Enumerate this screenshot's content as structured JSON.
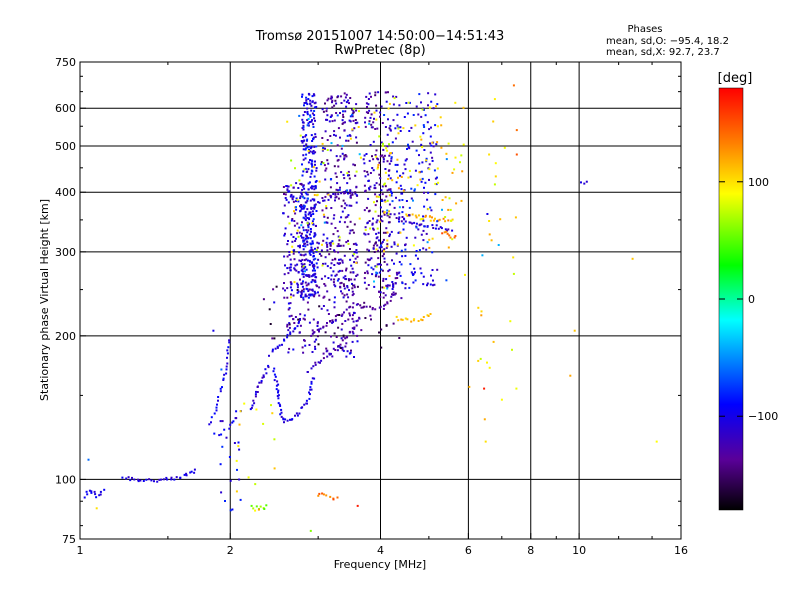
{
  "chart_data": {
    "type": "scatter",
    "title": "Tromsø 20151007 14:50:00−14:51:43",
    "subtitle": "RwPretec (8p)",
    "xlabel": "Frequency [MHz]",
    "ylabel": "Stationary phase Virtual Height [km]",
    "x_scale": "log",
    "y_scale": "log",
    "xlim": [
      1,
      16
    ],
    "ylim": [
      75,
      750
    ],
    "x_ticks": [
      "1",
      "2",
      "4",
      "6",
      "8",
      "10",
      "16"
    ],
    "x_tick_values": [
      1,
      2,
      4,
      6,
      8,
      10,
      16
    ],
    "y_ticks": [
      "75",
      "100",
      "200",
      "300",
      "400",
      "500",
      "600",
      "750"
    ],
    "y_tick_values": [
      75,
      100,
      200,
      300,
      400,
      500,
      600,
      750
    ],
    "x_grid": [
      2,
      4,
      6,
      8,
      10
    ],
    "y_grid": [
      100,
      200,
      300,
      400,
      500,
      600
    ],
    "grid": true,
    "stats": {
      "title": "Phases",
      "line_o": "mean, sd,O: −95.4, 18.2",
      "line_x": "mean, sd,X:  92.7, 23.7"
    },
    "colorbar": {
      "label": "[deg]",
      "range": [
        -180,
        180
      ],
      "ticks": [
        "100",
        "0",
        "−100"
      ],
      "tick_values": [
        100,
        0,
        -100
      ],
      "colors": [
        "#000000",
        "#5a0099",
        "#0000ff",
        "#00ffff",
        "#00ff00",
        "#ffff00",
        "#ff7f00",
        "#ff0000"
      ]
    },
    "traces": [
      {
        "phase": -100,
        "step": 0.012,
        "pts": [
          [
            1.02,
            92
          ],
          [
            1.05,
            95
          ],
          [
            1.08,
            92
          ],
          [
            1.12,
            96
          ]
        ]
      },
      {
        "phase": -105,
        "step": 0.012,
        "pts": [
          [
            1.22,
            101
          ],
          [
            1.3,
            100
          ],
          [
            1.42,
            99.5
          ],
          [
            1.55,
            100
          ],
          [
            1.63,
            102
          ],
          [
            1.72,
            105
          ]
        ]
      },
      {
        "phase": -100,
        "step": 0.02,
        "pts": [
          [
            1.82,
            130
          ],
          [
            1.87,
            140
          ],
          [
            1.9,
            150
          ],
          [
            1.94,
            160
          ],
          [
            1.96,
            170
          ],
          [
            1.97,
            180
          ],
          [
            1.98,
            190
          ],
          [
            1.98,
            200
          ]
        ]
      },
      {
        "phase": -100,
        "step": 0.02,
        "pts": [
          [
            1.86,
            125
          ],
          [
            1.92,
            125
          ],
          [
            1.98,
            127
          ],
          [
            2.06,
            138
          ],
          [
            2.12,
            140
          ]
        ]
      },
      {
        "phase": -100,
        "step": 0.012,
        "pts": [
          [
            2.4,
            183
          ],
          [
            2.5,
            190
          ],
          [
            2.6,
            198
          ],
          [
            2.7,
            208
          ],
          [
            2.78,
            220
          ]
        ]
      },
      {
        "phase": -125,
        "step": 0.012,
        "pts": [
          [
            2.85,
            168
          ],
          [
            3.0,
            176
          ],
          [
            3.2,
            185
          ],
          [
            3.4,
            196
          ],
          [
            3.55,
            210
          ],
          [
            3.65,
            222
          ]
        ]
      },
      {
        "phase": -130,
        "step": 0.012,
        "pts": [
          [
            2.9,
            200
          ],
          [
            3.1,
            210
          ],
          [
            3.3,
            220
          ],
          [
            3.55,
            232
          ],
          [
            3.8,
            230
          ],
          [
            4.05,
            228
          ],
          [
            4.2,
            240
          ],
          [
            4.28,
            260
          ],
          [
            4.35,
            275
          ]
        ]
      },
      {
        "phase": -100,
        "step": 0.012,
        "pts": [
          [
            2.6,
            405
          ],
          [
            2.7,
            385
          ],
          [
            2.8,
            370
          ],
          [
            2.86,
            350
          ],
          [
            2.9,
            330
          ],
          [
            2.92,
            300
          ],
          [
            2.94,
            270
          ],
          [
            2.96,
            255
          ]
        ]
      },
      {
        "phase": -110,
        "step": 0.012,
        "pts": [
          [
            2.85,
            360
          ],
          [
            3.0,
            380
          ],
          [
            3.2,
            392
          ],
          [
            3.4,
            398
          ],
          [
            3.6,
            395
          ]
        ]
      },
      {
        "phase": -115,
        "step": 0.012,
        "pts": [
          [
            4.0,
            370
          ],
          [
            4.3,
            355
          ],
          [
            4.6,
            345
          ],
          [
            5.0,
            340
          ],
          [
            5.4,
            335
          ],
          [
            5.6,
            330
          ]
        ]
      },
      {
        "phase": 120,
        "step": 0.012,
        "pts": [
          [
            4.5,
            360
          ],
          [
            4.8,
            355
          ],
          [
            5.1,
            352
          ],
          [
            5.4,
            348
          ],
          [
            5.65,
            350
          ]
        ]
      },
      {
        "phase": 140,
        "step": 0.012,
        "pts": [
          [
            5.3,
            330
          ],
          [
            5.5,
            325
          ],
          [
            5.7,
            322
          ]
        ]
      },
      {
        "phase": -100,
        "step": 0.012,
        "pts": [
          [
            2.45,
            170
          ],
          [
            2.5,
            150
          ],
          [
            2.52,
            140
          ],
          [
            2.55,
            132
          ],
          [
            2.7,
            135
          ],
          [
            2.85,
            145
          ],
          [
            2.95,
            165
          ]
        ]
      },
      {
        "phase": -110,
        "step": 0.012,
        "pts": [
          [
            2.2,
            140
          ],
          [
            2.3,
            160
          ],
          [
            2.4,
            175
          ]
        ]
      },
      {
        "phase": 110,
        "step": 0.012,
        "pts": [
          [
            4.3,
            218
          ],
          [
            4.6,
            216
          ],
          [
            4.9,
            218
          ],
          [
            5.1,
            222
          ]
        ]
      },
      {
        "phase": 60,
        "step": 0.012,
        "pts": [
          [
            2.2,
            88
          ],
          [
            2.3,
            87
          ],
          [
            2.4,
            88
          ]
        ]
      },
      {
        "phase": 140,
        "step": 0.012,
        "pts": [
          [
            3.0,
            93
          ],
          [
            3.2,
            92
          ],
          [
            3.3,
            91
          ]
        ]
      },
      {
        "phase": -100,
        "step": 0.015,
        "pts": [
          [
            10.1,
            420
          ],
          [
            10.5,
            423
          ]
        ]
      }
    ],
    "clusters": [
      {
        "phase": -100,
        "x": [
          2.78,
          2.98
        ],
        "y": [
          240,
          650
        ],
        "n": 260
      },
      {
        "phase": -118,
        "x": [
          2.55,
          2.85
        ],
        "y": [
          240,
          420
        ],
        "n": 110
      },
      {
        "phase": -125,
        "x": [
          3.05,
          3.6
        ],
        "y": [
          240,
          650
        ],
        "n": 260
      },
      {
        "phase": -125,
        "x": [
          3.7,
          4.2
        ],
        "y": [
          240,
          650
        ],
        "n": 220
      },
      {
        "phase": -100,
        "x": [
          4.2,
          5.2
        ],
        "y": [
          250,
          650
        ],
        "n": 200
      },
      {
        "phase": -120,
        "x": [
          2.6,
          3.6
        ],
        "y": [
          180,
          320
        ],
        "n": 180
      },
      {
        "phase": 100,
        "x": [
          3.9,
          5.9
        ],
        "y": [
          300,
          650
        ],
        "n": 90
      },
      {
        "phase": 90,
        "x": [
          2.6,
          4.2
        ],
        "y": [
          240,
          600
        ],
        "n": 70
      },
      {
        "phase": -60,
        "x": [
          2.7,
          5.5
        ],
        "y": [
          250,
          600
        ],
        "n": 50
      },
      {
        "phase": 100,
        "x": [
          5.9,
          7.5
        ],
        "y": [
          130,
          680
        ],
        "n": 28
      },
      {
        "phase": -150,
        "x": [
          2.3,
          4.5
        ],
        "y": [
          185,
          260
        ],
        "n": 60
      },
      {
        "phase": -100,
        "x": [
          1.9,
          2.1
        ],
        "y": [
          85,
          135
        ],
        "n": 18
      },
      {
        "phase": 100,
        "x": [
          2.05,
          2.5
        ],
        "y": [
          85,
          150
        ],
        "n": 16
      }
    ],
    "points": [
      {
        "x": 1.04,
        "y": 110,
        "phase": -60
      },
      {
        "x": 1.08,
        "y": 87,
        "phase": 100
      },
      {
        "x": 1.85,
        "y": 205,
        "phase": -100
      },
      {
        "x": 1.92,
        "y": 170,
        "phase": -60
      },
      {
        "x": 2.45,
        "y": 235,
        "phase": -100
      },
      {
        "x": 2.9,
        "y": 78,
        "phase": 60
      },
      {
        "x": 3.6,
        "y": 88,
        "phase": 170
      },
      {
        "x": 6.45,
        "y": 155,
        "phase": 170
      },
      {
        "x": 6.5,
        "y": 120,
        "phase": 100
      },
      {
        "x": 6.6,
        "y": 480,
        "phase": 100
      },
      {
        "x": 7.4,
        "y": 670,
        "phase": 140
      },
      {
        "x": 7.5,
        "y": 540,
        "phase": 140
      },
      {
        "x": 7.5,
        "y": 480,
        "phase": 150
      },
      {
        "x": 6.9,
        "y": 310,
        "phase": -40
      },
      {
        "x": 6.4,
        "y": 295,
        "phase": -40
      },
      {
        "x": 6.55,
        "y": 360,
        "phase": -100
      },
      {
        "x": 9.6,
        "y": 165,
        "phase": 120
      },
      {
        "x": 9.8,
        "y": 205,
        "phase": 110
      },
      {
        "x": 12.8,
        "y": 290,
        "phase": 110
      },
      {
        "x": 14.3,
        "y": 120,
        "phase": 90
      }
    ]
  }
}
